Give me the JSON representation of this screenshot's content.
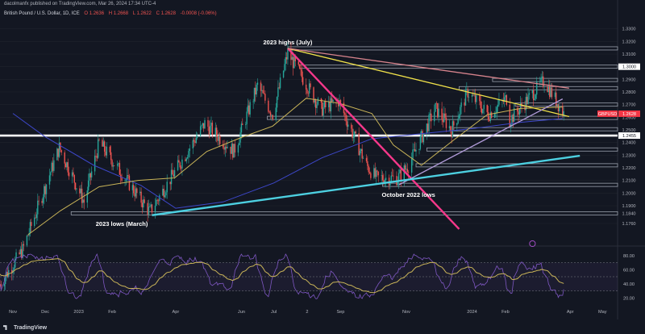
{
  "header": {
    "publisher": "dacolmanfx published on TradingView.com, Mar 26, 2024 17:34 UTC-4",
    "symbol": "British Pound / U.S. Dollar, 1D, ICE",
    "ohlc": {
      "open": "O 1.2636",
      "high": "H 1.2668",
      "low": "L 1.2622",
      "close": "C 1.2628",
      "change": "-0.0008 (-0.06%)"
    }
  },
  "footer": {
    "brand": "TradingView"
  },
  "colors": {
    "background": "#131722",
    "up": "#26a69a",
    "down": "#ef5350",
    "sma50": "#c9b458",
    "sma200": "#3d47c9",
    "pink": "#f5388a",
    "yellow": "#f0e14a",
    "lavender": "#b39ddb",
    "cyan": "#4dd0e1",
    "rsi": "#7e57c2",
    "rsi_ma": "#c9b458"
  },
  "chart_data": [
    {
      "type": "candlestick",
      "title": "British Pound / U.S. Dollar, 1D, ICE",
      "ylim": [
        1.16,
        1.34
      ],
      "y_ticks": [
        "1.3300",
        "1.3200",
        "1.3100",
        "1.3000",
        "1.2900",
        "1.2800",
        "1.2700",
        "1.2600",
        "1.2500",
        "1.2400",
        "1.2300",
        "1.2200",
        "1.2100",
        "1.2000",
        "1.1900",
        "1.1840",
        "1.1760"
      ],
      "x_ticks": [
        "Nov",
        "Dec",
        "2023",
        "Feb",
        "Apr",
        "Jun",
        "Jul",
        "2",
        "Sep",
        "Nov",
        "2024",
        "Feb",
        "Apr",
        "May"
      ],
      "price_labels": [
        {
          "label": "1.3000",
          "value": 1.3
        },
        {
          "label": "GBPUSD",
          "value": 1.2628,
          "price": "1.2628"
        },
        {
          "label": "1.2455",
          "value": 1.2455
        }
      ],
      "horizontal_levels": [
        1.3145,
        1.3,
        1.2895,
        1.283,
        1.27,
        1.2595,
        1.2505,
        1.2455,
        1.2345,
        1.222,
        1.2065,
        1.184
      ],
      "trendlines": [
        {
          "name": "pink",
          "from": [
            "2023-07-14",
            1.3145
          ],
          "to": [
            "2023-12-20",
            1.1715
          ]
        },
        {
          "name": "yellow",
          "from": [
            "2023-07-14",
            1.3145
          ],
          "to": [
            "2024-03-31",
            1.2605
          ]
        },
        {
          "name": "salmon",
          "from": [
            "2023-07-14",
            1.3145
          ],
          "to": [
            "2024-03-31",
            1.283
          ]
        },
        {
          "name": "lavender",
          "from": [
            "2023-10-25",
            1.2065
          ],
          "to": [
            "2024-03-25",
            1.2745
          ]
        },
        {
          "name": "cyan",
          "from": [
            "2023-03-10",
            1.1825
          ],
          "to": [
            "2024-04-10",
            1.2295
          ]
        }
      ],
      "annotations": [
        {
          "text": "2023 highs (July)",
          "x": "2023-07-14",
          "y": 1.3145
        },
        {
          "text": "October 2022 lows",
          "x": "2023-11-03",
          "y": 1.2065
        },
        {
          "text": "2023 lows (March)",
          "x": "2023-02-10",
          "y": 1.1825
        }
      ],
      "sma_50": [
        [
          "2022-11-15",
          1.167
        ],
        [
          "2022-12-15",
          1.186
        ],
        [
          "2023-01-20",
          1.205
        ],
        [
          "2023-02-25",
          1.21
        ],
        [
          "2023-03-31",
          1.212
        ],
        [
          "2023-04-30",
          1.233
        ],
        [
          "2023-06-01",
          1.244
        ],
        [
          "2023-06-30",
          1.253
        ],
        [
          "2023-07-31",
          1.275
        ],
        [
          "2023-08-31",
          1.271
        ],
        [
          "2023-09-30",
          1.263
        ],
        [
          "2023-10-20",
          1.238
        ],
        [
          "2023-11-15",
          1.222
        ],
        [
          "2023-12-15",
          1.242
        ],
        [
          "2024-01-15",
          1.262
        ],
        [
          "2024-02-15",
          1.267
        ],
        [
          "2024-03-25",
          1.268
        ]
      ],
      "sma_200": [
        [
          "2022-11-01",
          1.263
        ],
        [
          "2022-11-30",
          1.245
        ],
        [
          "2023-01-15",
          1.222
        ],
        [
          "2023-02-28",
          1.206
        ],
        [
          "2023-04-01",
          1.188
        ],
        [
          "2023-05-15",
          1.193
        ],
        [
          "2023-07-01",
          1.208
        ],
        [
          "2023-08-15",
          1.228
        ],
        [
          "2023-09-30",
          1.243
        ],
        [
          "2023-11-15",
          1.247
        ],
        [
          "2024-01-01",
          1.251
        ],
        [
          "2024-02-15",
          1.256
        ],
        [
          "2024-03-25",
          1.259
        ]
      ]
    },
    {
      "type": "line",
      "title": "RSI",
      "ylim": [
        10,
        90
      ],
      "y_ticks": [
        "80.00",
        "60.00",
        "40.00",
        "20.00"
      ],
      "levels": [
        70,
        50,
        30
      ]
    }
  ]
}
